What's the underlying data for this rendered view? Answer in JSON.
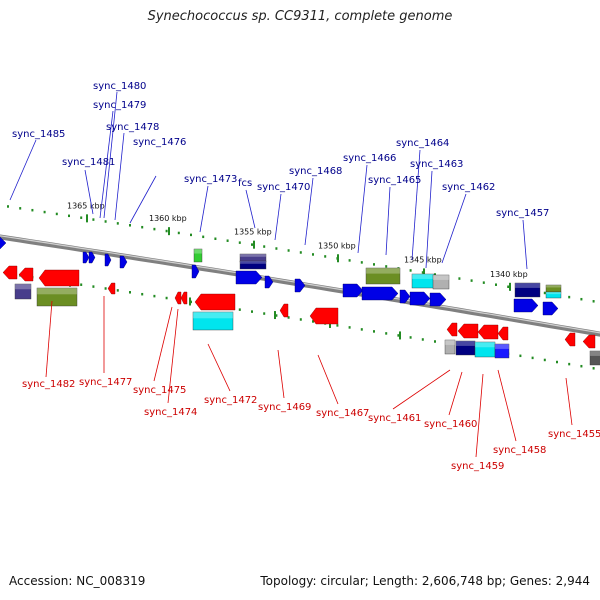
{
  "header": {
    "title": "Synechococcus sp. CC9311, complete genome"
  },
  "footer": {
    "accession": "Accession: NC_008319",
    "summary": "Topology: circular; Length: 2,606,748 bp; Genes: 2,944"
  },
  "scale_labels": [
    "1365 kbp",
    "1360 kbp",
    "1355 kbp",
    "1350 kbp",
    "1345 kbp",
    "1340 kbp"
  ],
  "forward_labels": [
    "sync_1485",
    "sync_1481",
    "sync_1480",
    "sync_1479",
    "sync_1478",
    "sync_1476",
    "sync_1473",
    "fcs",
    "sync_1470",
    "sync_1468",
    "sync_1466",
    "sync_1465",
    "sync_1464",
    "sync_1463",
    "sync_1462",
    "sync_1457"
  ],
  "reverse_labels": [
    "sync_1482",
    "sync_1477",
    "sync_1475",
    "sync_1474",
    "sync_1472",
    "sync_1469",
    "sync_1467",
    "sync_1461",
    "sync_1460",
    "sync_1459",
    "sync_1458",
    "sync_1455"
  ],
  "colors": {
    "forward_label": "#00008b",
    "reverse_label": "#cc0000",
    "backbone": "#808080",
    "tick": "#228b22",
    "forward_arrow": "#0000e6",
    "reverse_arrow": "#ff0000",
    "olive_box": "#6b8e23",
    "cyan_box": "#00e5ee",
    "navy_box": "#000080",
    "slate_box": "#483d8b",
    "grey_box": "#b0b0b0",
    "green_box": "#32cd32"
  }
}
